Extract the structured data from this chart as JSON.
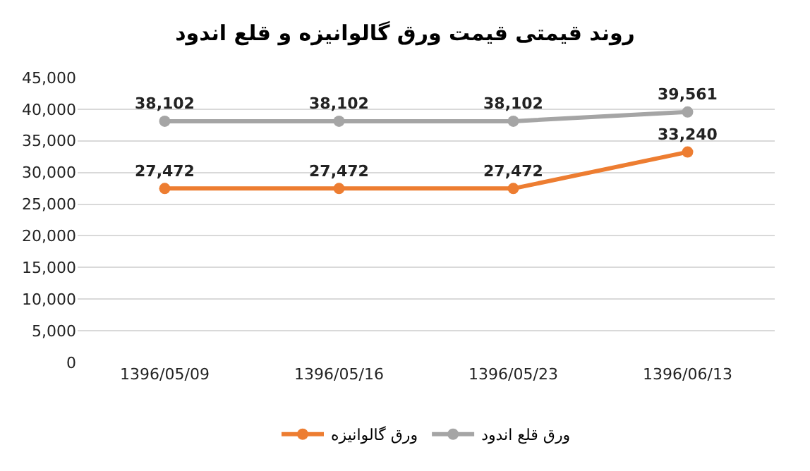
{
  "chart_data": {
    "type": "line",
    "title": "روند قیمتی قیمت ورق گالوانیزه و قلع اندود",
    "categories": [
      "1396/05/09",
      "1396/05/16",
      "1396/05/23",
      "1396/06/13"
    ],
    "series": [
      {
        "name": "ورق گالوانیزه",
        "color": "#ed7d31",
        "values": [
          27472,
          27472,
          27472,
          33240
        ],
        "value_labels": [
          "27,472",
          "27,472",
          "27,472",
          "33,240"
        ]
      },
      {
        "name": "ورق قلع اندود",
        "color": "#a5a5a5",
        "values": [
          38102,
          38102,
          38102,
          39561
        ],
        "value_labels": [
          "38,102",
          "38,102",
          "38,102",
          "39,561"
        ]
      }
    ],
    "ylim": [
      0,
      45000
    ],
    "yticks": [
      {
        "value": 0,
        "label": "0"
      },
      {
        "value": 5000,
        "label": "5,000"
      },
      {
        "value": 10000,
        "label": "10,000"
      },
      {
        "value": 15000,
        "label": "15,000"
      },
      {
        "value": 20000,
        "label": "20,000"
      },
      {
        "value": 25000,
        "label": "25,000"
      },
      {
        "value": 30000,
        "label": "30,000"
      },
      {
        "value": 35000,
        "label": "35,000"
      },
      {
        "value": 40000,
        "label": "40,000"
      },
      {
        "value": 45000,
        "label": "45,000"
      }
    ],
    "grid": "y",
    "legend": "bottom",
    "marker": "circle",
    "line_style": "solid"
  }
}
